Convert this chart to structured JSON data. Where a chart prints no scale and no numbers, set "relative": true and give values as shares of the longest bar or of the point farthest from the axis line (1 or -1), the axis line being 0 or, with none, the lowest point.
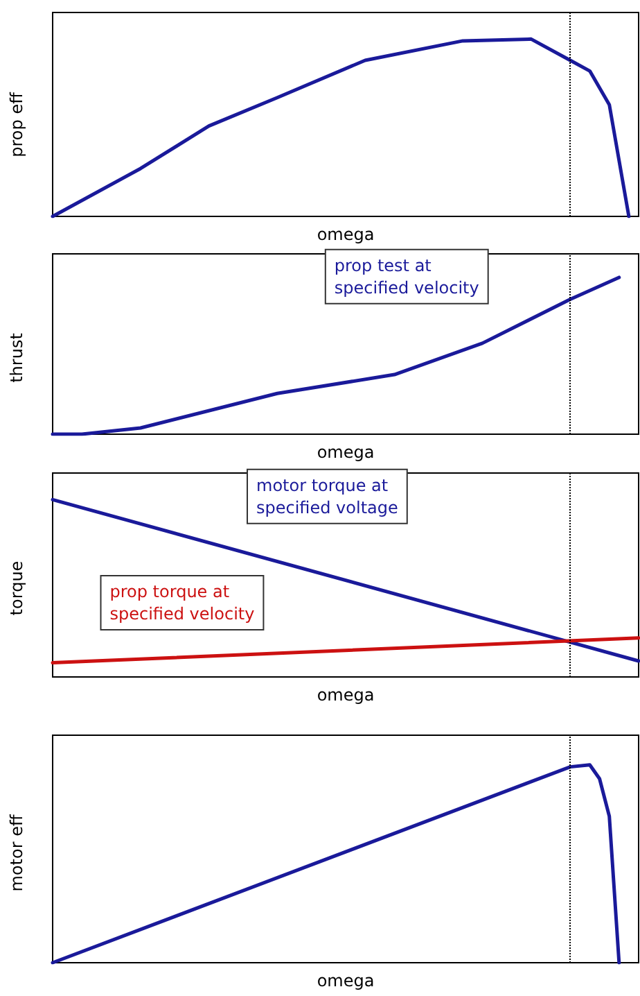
{
  "chart_data": [
    {
      "type": "line",
      "xlabel": "omega",
      "ylabel": "prop eff",
      "relative": true,
      "tick_labels": false,
      "grid": false,
      "legend": false,
      "line_style": "solid",
      "categories": [
        null,
        null,
        null,
        null,
        null,
        null,
        null,
        null,
        null,
        null,
        null,
        null,
        null,
        null,
        null,
        null,
        null,
        null,
        null,
        null,
        null,
        null,
        null,
        null,
        null,
        null,
        null,
        null,
        null,
        null,
        null,
        null,
        null,
        null,
        null,
        null,
        null,
        null,
        null,
        null,
        null,
        null,
        null,
        null,
        null,
        null,
        null,
        null,
        null,
        null,
        null,
        null,
        null,
        null,
        null,
        null,
        null,
        null,
        null,
        null,
        null
      ],
      "series": [
        {
          "color": "#1a1a9a",
          "values": [
            0,
            null,
            null,
            null,
            null,
            null,
            null,
            null,
            null,
            0.27,
            null,
            null,
            null,
            null,
            null,
            null,
            0.51,
            null,
            null,
            null,
            null,
            null,
            null,
            0.67,
            null,
            null,
            null,
            null,
            null,
            null,
            null,
            null,
            0.88,
            null,
            null,
            null,
            null,
            null,
            null,
            null,
            null,
            null,
            0.99,
            null,
            null,
            null,
            null,
            null,
            null,
            1,
            null,
            null,
            null,
            0.88,
            null,
            0.82,
            null,
            0.63,
            null,
            0,
            null
          ]
        }
      ]
    },
    {
      "type": "line",
      "xlabel": "omega",
      "ylabel": "thrust",
      "relative": true,
      "tick_labels": false,
      "grid": false,
      "legend": false,
      "line_style": "solid",
      "categories": [
        null,
        null,
        null,
        null,
        null,
        null,
        null,
        null,
        null,
        null,
        null,
        null,
        null,
        null,
        null,
        null,
        null,
        null,
        null,
        null,
        null,
        null,
        null,
        null,
        null,
        null,
        null,
        null,
        null,
        null,
        null,
        null,
        null,
        null,
        null,
        null,
        null,
        null,
        null,
        null,
        null,
        null,
        null,
        null,
        null,
        null,
        null,
        null,
        null,
        null,
        null,
        null,
        null,
        null,
        null,
        null,
        null,
        null,
        null,
        null,
        null
      ],
      "series": [
        {
          "name": "prop test at\nspecified velocity",
          "color": "#1a1a9a",
          "values": [
            0,
            null,
            null,
            0,
            null,
            null,
            null,
            null,
            null,
            0.04,
            null,
            null,
            null,
            null,
            null,
            null,
            null,
            null,
            null,
            null,
            null,
            null,
            null,
            0.26,
            null,
            null,
            null,
            null,
            null,
            null,
            null,
            null,
            null,
            null,
            null,
            0.38,
            null,
            null,
            null,
            null,
            null,
            null,
            null,
            null,
            0.58,
            null,
            null,
            null,
            null,
            null,
            null,
            null,
            null,
            0.86,
            null,
            null,
            null,
            null,
            1,
            null,
            null
          ]
        }
      ]
    },
    {
      "type": "line",
      "xlabel": "omega",
      "ylabel": "torque",
      "relative": true,
      "tick_labels": false,
      "grid": false,
      "legend": false,
      "line_style": "solid",
      "categories": [
        null,
        null,
        null,
        null,
        null,
        null,
        null,
        null,
        null,
        null,
        null,
        null,
        null,
        null,
        null,
        null,
        null,
        null,
        null,
        null,
        null,
        null,
        null,
        null,
        null,
        null,
        null,
        null,
        null,
        null,
        null,
        null,
        null,
        null,
        null,
        null,
        null,
        null,
        null,
        null,
        null,
        null,
        null,
        null,
        null,
        null,
        null,
        null,
        null,
        null,
        null,
        null,
        null,
        null,
        null,
        null,
        null,
        null,
        null,
        null,
        null
      ],
      "series": [
        {
          "name": "motor torque at\nspecified voltage",
          "color": "#1a1a9a",
          "values": [
            1,
            null,
            null,
            null,
            null,
            null,
            null,
            null,
            null,
            null,
            null,
            null,
            null,
            null,
            null,
            null,
            null,
            null,
            null,
            null,
            null,
            null,
            null,
            null,
            null,
            null,
            null,
            null,
            null,
            null,
            null,
            null,
            null,
            null,
            null,
            null,
            null,
            null,
            null,
            null,
            null,
            null,
            null,
            null,
            null,
            null,
            null,
            null,
            null,
            null,
            null,
            null,
            null,
            null,
            null,
            null,
            null,
            null,
            null,
            null,
            0.09
          ]
        },
        {
          "name": "prop torque at\nspecified velocity",
          "color": "#cc1111",
          "values": [
            0.08,
            null,
            null,
            null,
            null,
            null,
            null,
            null,
            null,
            null,
            null,
            null,
            null,
            null,
            null,
            null,
            null,
            null,
            null,
            null,
            null,
            null,
            null,
            null,
            null,
            null,
            null,
            null,
            null,
            null,
            null,
            null,
            null,
            null,
            null,
            null,
            null,
            null,
            null,
            null,
            null,
            null,
            null,
            null,
            null,
            null,
            null,
            null,
            null,
            null,
            null,
            null,
            null,
            null,
            null,
            null,
            null,
            null,
            null,
            null,
            0.22
          ]
        }
      ]
    },
    {
      "type": "line",
      "xlabel": "omega",
      "ylabel": "motor eff",
      "relative": true,
      "tick_labels": false,
      "grid": false,
      "legend": false,
      "line_style": "solid",
      "categories": [
        null,
        null,
        null,
        null,
        null,
        null,
        null,
        null,
        null,
        null,
        null,
        null,
        null,
        null,
        null,
        null,
        null,
        null,
        null,
        null,
        null,
        null,
        null,
        null,
        null,
        null,
        null,
        null,
        null,
        null,
        null,
        null,
        null,
        null,
        null,
        null,
        null,
        null,
        null,
        null,
        null,
        null,
        null,
        null,
        null,
        null,
        null,
        null,
        null,
        null,
        null,
        null,
        null,
        null,
        null,
        null,
        null,
        null,
        null,
        null,
        null
      ],
      "series": [
        {
          "color": "#1a1a9a",
          "values": [
            0,
            null,
            null,
            null,
            null,
            null,
            null,
            null,
            null,
            null,
            null,
            null,
            null,
            null,
            null,
            null,
            null,
            null,
            null,
            null,
            null,
            null,
            null,
            null,
            null,
            null,
            null,
            null,
            null,
            null,
            null,
            null,
            null,
            null,
            null,
            null,
            null,
            null,
            null,
            null,
            null,
            null,
            null,
            null,
            null,
            null,
            null,
            null,
            null,
            null,
            null,
            null,
            null,
            0.99,
            null,
            1,
            0.93,
            0.74,
            0,
            null,
            null
          ]
        }
      ]
    }
  ]
}
